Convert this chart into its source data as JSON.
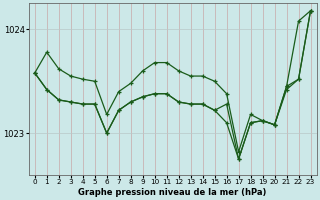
{
  "title": "Graphe pression niveau de la mer (hPa)",
  "background_color": "#cce8e8",
  "grid_color_v": "#c8a8a8",
  "grid_color_h": "#b8c8c8",
  "line_color": "#1a5c1a",
  "marker": "+",
  "xlim": [
    -0.5,
    23.5
  ],
  "ylim": [
    1022.6,
    1024.25
  ],
  "yticks": [
    1023,
    1024
  ],
  "xticks": [
    0,
    1,
    2,
    3,
    4,
    5,
    6,
    7,
    8,
    9,
    10,
    11,
    12,
    13,
    14,
    15,
    16,
    17,
    18,
    19,
    20,
    21,
    22,
    23
  ],
  "series": [
    [
      1023.58,
      1023.78,
      1023.62,
      1023.55,
      1023.52,
      1023.5,
      1023.18,
      1023.4,
      1023.48,
      1023.6,
      1023.68,
      1023.68,
      1023.6,
      1023.55,
      1023.55,
      1023.5,
      1023.38,
      1022.82,
      1023.18,
      1023.12,
      1023.08,
      1023.45,
      1024.08,
      1024.18
    ],
    [
      1023.58,
      1023.42,
      1023.32,
      1023.3,
      1023.28,
      1023.28,
      1023.0,
      1023.22,
      1023.3,
      1023.35,
      1023.38,
      1023.38,
      1023.3,
      1023.28,
      1023.28,
      1023.22,
      1023.28,
      1022.75,
      1023.1,
      1023.12,
      1023.08,
      1023.45,
      1023.52,
      1024.18
    ],
    [
      1023.58,
      1023.42,
      1023.32,
      1023.3,
      1023.28,
      1023.28,
      1023.0,
      1023.22,
      1023.3,
      1023.35,
      1023.38,
      1023.38,
      1023.3,
      1023.28,
      1023.28,
      1023.22,
      1023.1,
      1022.75,
      1023.1,
      1023.12,
      1023.08,
      1023.42,
      1023.52,
      1024.18
    ]
  ]
}
